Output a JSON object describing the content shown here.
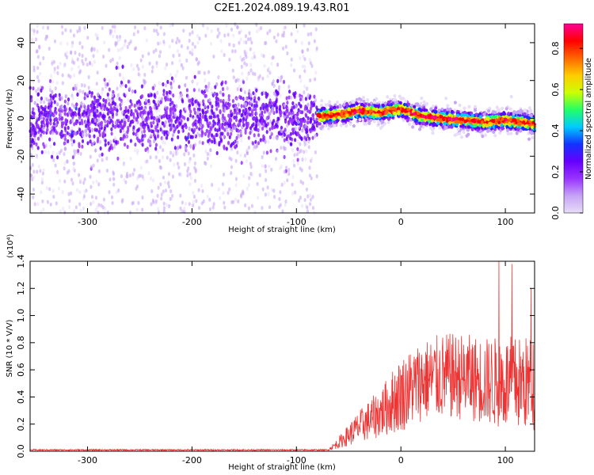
{
  "title": "C2E1.2024.089.19.43.R01",
  "colors": {
    "line": "#ee3333",
    "colormap": [
      "#e8ddf8",
      "#c5a3f5",
      "#9933ff",
      "#6600ff",
      "#1133ff",
      "#00ccff",
      "#22ff66",
      "#ccff00",
      "#ffcc00",
      "#ff6600",
      "#ff0000",
      "#ff0099"
    ]
  },
  "chart_data": [
    {
      "type": "heatmap",
      "title": "",
      "xlabel": "Height of straight line (km)",
      "ylabel": "Frequency (Hz)",
      "xlim": [
        -355,
        128
      ],
      "ylim": [
        -50,
        50
      ],
      "x_ticks": [
        "-300",
        "-200",
        "-100",
        "0",
        "100"
      ],
      "x_tick_values": [
        -300,
        -200,
        -100,
        0,
        100
      ],
      "y_ticks": [
        "-40",
        "-20",
        "0",
        "20",
        "40"
      ],
      "y_tick_values": [
        -40,
        -20,
        0,
        20,
        40
      ],
      "grid": false,
      "colorbar": {
        "label": "Normalized spectral amplitude",
        "ticks": [
          "0.0",
          "0.2",
          "0.4",
          "0.6",
          "0.8"
        ],
        "tick_values": [
          0.0,
          0.2,
          0.4,
          0.6,
          0.8
        ],
        "range": [
          0,
          0.92
        ]
      },
      "description_series": [
        {
          "x": [
            -355,
            -80
          ],
          "center_freq": 0,
          "core_halfwidth": 8,
          "amplitude": 0.25,
          "scatter_halfwidth": 50
        },
        {
          "x": [
            -80,
            128
          ],
          "center_freq": [
            1,
            2,
            4,
            3,
            5,
            1,
            0,
            -1,
            -2,
            -1,
            -3
          ],
          "center_x": [
            -80,
            -60,
            -40,
            -20,
            0,
            20,
            40,
            60,
            80,
            100,
            128
          ],
          "amplitude": 0.85
        }
      ]
    },
    {
      "type": "line",
      "title": "",
      "xlabel": "Height of straight line (km)",
      "ylabel": "SNR (10 * V/V)",
      "y_multiplier_label": "(x10⁴)",
      "xlim": [
        -355,
        128
      ],
      "ylim": [
        0,
        1.4
      ],
      "x_ticks": [
        "-300",
        "-200",
        "-100",
        "0",
        "100"
      ],
      "x_tick_values": [
        -300,
        -200,
        -100,
        0,
        100
      ],
      "y_ticks": [
        "0.0",
        "0.2",
        "0.4",
        "0.6",
        "0.8",
        "1.0",
        "1.2",
        "1.4"
      ],
      "y_tick_values": [
        0.0,
        0.2,
        0.4,
        0.6,
        0.8,
        1.0,
        1.2,
        1.4
      ],
      "grid": false,
      "series": [
        {
          "x_range": [
            -355,
            128
          ],
          "envelope_x": [
            -355,
            -70,
            -60,
            -50,
            -40,
            -20,
            0,
            20,
            40,
            60,
            80,
            100,
            128
          ],
          "envelope_mean": [
            0.01,
            0.01,
            0.06,
            0.12,
            0.18,
            0.28,
            0.42,
            0.52,
            0.55,
            0.55,
            0.52,
            0.5,
            0.5
          ],
          "envelope_spread": [
            0.005,
            0.005,
            0.04,
            0.08,
            0.12,
            0.18,
            0.28,
            0.3,
            0.32,
            0.32,
            0.32,
            0.35,
            0.35
          ],
          "peak_values": [
            1.4,
            1.38,
            1.2,
            1.1
          ]
        }
      ]
    }
  ]
}
